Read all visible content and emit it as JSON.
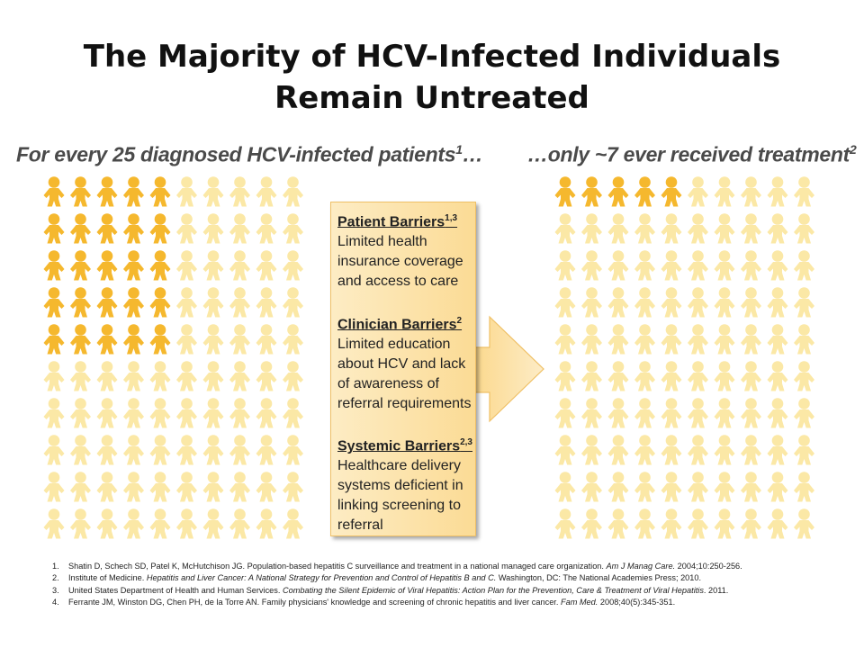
{
  "title": {
    "line1": "The Majority of HCV-Infected Individuals",
    "line2": "Remain Untreated"
  },
  "left_panel": {
    "heading": "For every 25 diagnosed HCV-infected patients",
    "heading_sup": "1",
    "heading_suffix": "…",
    "total_figures": 100,
    "highlighted_figures": 25
  },
  "right_panel": {
    "heading": "…only ~7 ever received treatment",
    "heading_sup": "2",
    "total_figures": 100,
    "highlighted_figures": 7
  },
  "barriers": [
    {
      "heading": "Patient Barriers",
      "sup": "1,3",
      "lines": [
        "Limited health",
        "insurance coverage",
        "and access to care"
      ]
    },
    {
      "heading": "Clinician Barriers",
      "sup": "2",
      "lines": [
        "Limited education",
        "about HCV and lack",
        "of awareness of",
        "referral requirements"
      ]
    },
    {
      "heading": "Systemic Barriers",
      "sup": "2,3",
      "lines": [
        "Healthcare delivery",
        "systems deficient in",
        "linking screening to",
        "referral"
      ]
    }
  ],
  "colors": {
    "figure_highlight": "#f5b82e",
    "figure_muted": "#fbe8a6",
    "box_fill": "#fbdb95",
    "box_border": "#efc066",
    "arrow_fill": "#fce2a8"
  },
  "icons": {
    "person": "person-figure-icon",
    "arrow": "right-arrow-icon"
  },
  "references": [
    {
      "num": "1.",
      "text": "Shatin D, Schech SD, Patel K, McHutchison JG. Population-based hepatitis C surveillance and treatment in a national managed care organization. ",
      "italic": "Am J Manag Care.",
      "text2": " 2004;10:250-256."
    },
    {
      "num": "2.",
      "text": "Institute of Medicine. ",
      "italic": "Hepatitis and Liver Cancer: A National Strategy for Prevention and Control of Hepatitis B and C.",
      "text2": " Washington, DC: The National Academies Press; 2010."
    },
    {
      "num": "3.",
      "text": "United States Department of Health and Human Services. ",
      "italic": "Combating the Silent Epidemic of Viral Hepatitis: Action Plan for the Prevention, Care & Treatment of Viral Hepatitis",
      "text2": ". 2011."
    },
    {
      "num": "4.",
      "text": "Ferrante JM, Winston DG, Chen PH, de la Torre AN. Family physicians' knowledge and screening of chronic hepatitis and liver cancer. ",
      "italic": "Fam Med.",
      "text2": " 2008;40(5):345-351."
    }
  ]
}
